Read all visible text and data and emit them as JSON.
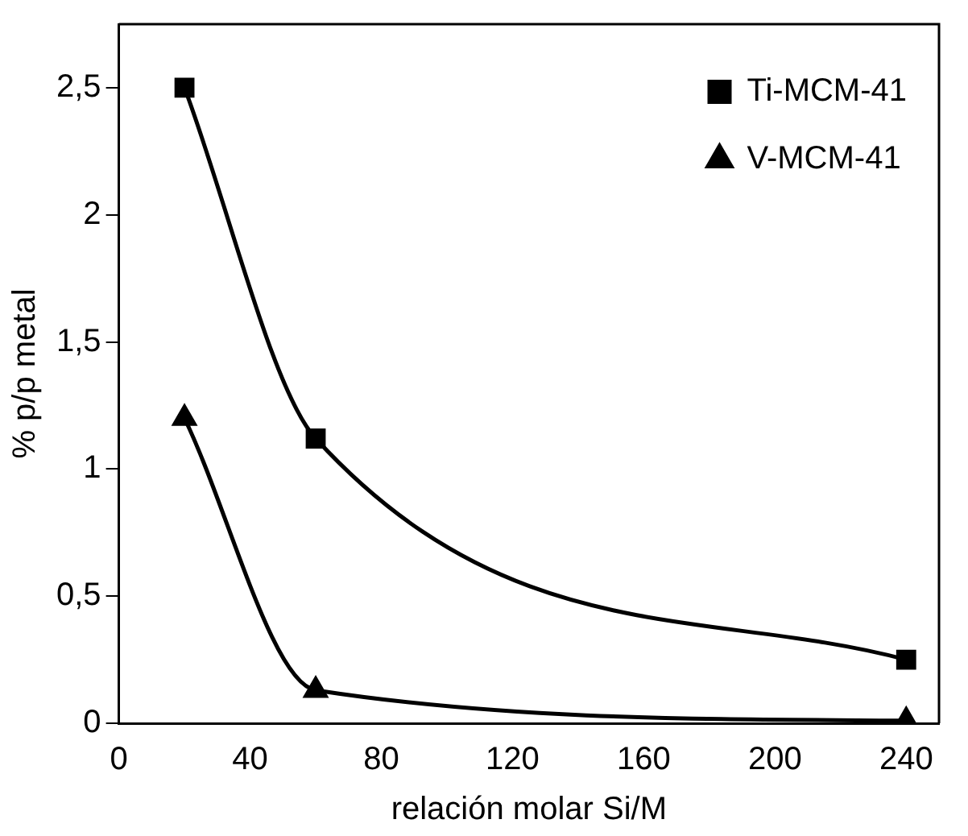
{
  "chart_data": {
    "type": "line",
    "xlabel": "relación molar Si/M",
    "ylabel": "% p/p metal",
    "x": [
      20,
      60,
      240
    ],
    "series": [
      {
        "name": "Ti-MCM-41",
        "color": "#000000",
        "marker": "square",
        "values": [
          2.5,
          1.12,
          0.25
        ]
      },
      {
        "name": "V-MCM-41",
        "color": "#000000",
        "marker": "triangle",
        "values": [
          1.2,
          0.13,
          0.01
        ]
      }
    ],
    "xlim": [
      0,
      250
    ],
    "xticks": [
      0,
      40,
      80,
      120,
      160,
      200,
      240
    ],
    "ylim": [
      0,
      2.75
    ],
    "yticks": [
      0,
      {
        "value": 0.5,
        "label": "0,5"
      },
      1,
      {
        "value": 1.5,
        "label": "1,5"
      },
      2,
      {
        "value": 2.5,
        "label": "2,5"
      }
    ],
    "grid": false,
    "legend": "top right",
    "line_style": "solid"
  }
}
